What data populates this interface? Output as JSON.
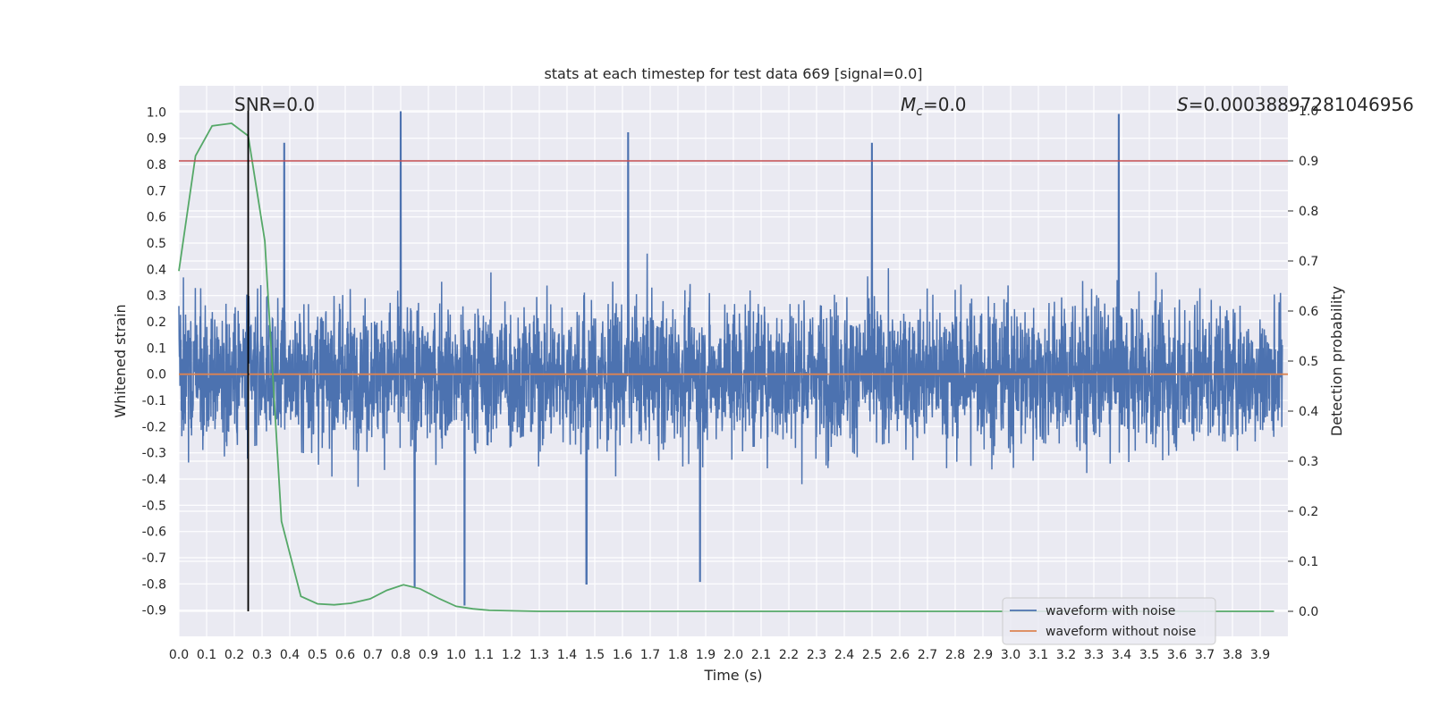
{
  "chart_data": {
    "type": "line",
    "title": "stats at each timestep for test data 669 [signal=0.0]",
    "xlabel": "Time (s)",
    "ylabel": "Whitened strain",
    "y2label": "Detection probability",
    "xlim": [
      0.0,
      4.0
    ],
    "ylim": [
      -1.0,
      1.1
    ],
    "y2lim": [
      -0.05,
      1.05
    ],
    "grid": true,
    "legend_position": "lower right",
    "x_ticks": [
      "0.0",
      "0.1",
      "0.2",
      "0.3",
      "0.4",
      "0.5",
      "0.6",
      "0.7",
      "0.8",
      "0.9",
      "1.0",
      "1.1",
      "1.2",
      "1.3",
      "1.4",
      "1.5",
      "1.6",
      "1.7",
      "1.8",
      "1.9",
      "2.0",
      "2.1",
      "2.2",
      "2.3",
      "2.4",
      "2.5",
      "2.6",
      "2.7",
      "2.8",
      "2.9",
      "3.0",
      "3.1",
      "3.2",
      "3.3",
      "3.4",
      "3.5",
      "3.6",
      "3.7",
      "3.8",
      "3.9"
    ],
    "y_ticks": [
      "1.0",
      "0.9",
      "0.8",
      "0.7",
      "0.6",
      "0.5",
      "0.4",
      "0.3",
      "0.2",
      "0.1",
      "0.0",
      "-0.1",
      "-0.2",
      "-0.3",
      "-0.4",
      "-0.5",
      "-0.6",
      "-0.7",
      "-0.8",
      "-0.9"
    ],
    "y2_ticks": [
      "1.0",
      "0.9",
      "0.8",
      "0.7",
      "0.6",
      "0.5",
      "0.4",
      "0.3",
      "0.2",
      "0.1",
      "0.0"
    ],
    "annotations": {
      "snr": "SNR=0.0",
      "mc_symbol": "M",
      "mc_sub": "c",
      "mc_value": "=0.0",
      "s_symbol": "S",
      "s_value": "=0.00038897281046956"
    },
    "series": [
      {
        "name": "waveform with noise",
        "axis": "left",
        "color": "#4c72b0",
        "description_note": "noise",
        "amplitude_envelope": [
          -0.9,
          1.0
        ],
        "notable_peaks": [
          {
            "x": 0.38,
            "y": 0.88
          },
          {
            "x": 0.8,
            "y": 1.0
          },
          {
            "x": 1.62,
            "y": 0.92
          },
          {
            "x": 2.5,
            "y": 0.88
          },
          {
            "x": 3.39,
            "y": 0.99
          },
          {
            "x": 1.03,
            "y": -0.88
          },
          {
            "x": 1.88,
            "y": -0.79
          },
          {
            "x": 1.47,
            "y": -0.8
          },
          {
            "x": 0.85,
            "y": -0.81
          }
        ]
      },
      {
        "name": "waveform without noise",
        "axis": "left",
        "color": "#dd8452",
        "x": [
          0.0,
          4.0
        ],
        "y": [
          0.0,
          0.0
        ]
      },
      {
        "axis": "right",
        "color": "#55a868",
        "x": [
          0.0,
          0.06,
          0.12,
          0.19,
          0.25,
          0.31,
          0.37,
          0.44,
          0.5,
          0.56,
          0.62,
          0.69,
          0.75,
          0.81,
          0.87,
          0.94,
          1.0,
          1.06,
          1.12,
          1.2,
          1.3,
          1.5,
          2.0,
          2.5,
          3.0,
          3.5,
          3.95
        ],
        "y": [
          0.68,
          0.91,
          0.97,
          0.975,
          0.95,
          0.74,
          0.18,
          0.03,
          0.015,
          0.013,
          0.016,
          0.025,
          0.042,
          0.053,
          0.045,
          0.025,
          0.01,
          0.005,
          0.002,
          0.001,
          0.0,
          0.0,
          0.0,
          0.0,
          0.0,
          0.0,
          0.0
        ]
      }
    ],
    "threshold_right": 0.9,
    "threshold_color": "#c44e52",
    "vertical_marker_x": 0.25,
    "vertical_marker_color": "#000000",
    "plot_bg": "#eaeaf2"
  }
}
